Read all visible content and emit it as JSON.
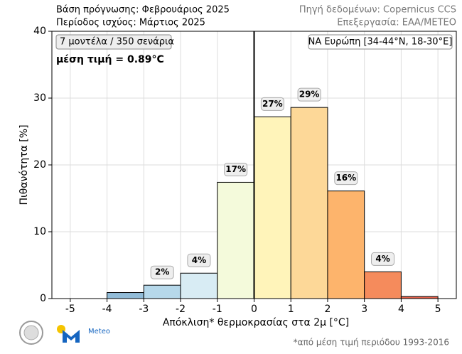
{
  "chart_data": {
    "type": "histogram",
    "header_left": [
      "Βάση πρόγνωσης: Φεβρουάριος 2025",
      "Περίοδος ισχύος: Μάρτιος 2025"
    ],
    "header_right": [
      "Πηγή δεδομένων: Copernicus CCS",
      "Επεξεργασία: ΕΑΑ/METEO"
    ],
    "info_box": "7 μοντέλα / 350 σενάρια",
    "mean_text": "μέση τιμή = 0.89°C",
    "region_box": "ΝΑ Ευρώπη [34-44°N, 18-30°E]",
    "xlabel": "Απόκλιση* θερμοκρασίας στα 2μ [°C]",
    "ylabel": "Πιθανότητα [%]",
    "footnote": "*από μέση τιμή περιόδου 1993-2016",
    "logo_text": "Meteo",
    "bins": [
      -5,
      -4,
      -3,
      -2,
      -1,
      0,
      1,
      2,
      3,
      4,
      5
    ],
    "values": [
      0,
      0.9,
      2.0,
      3.8,
      17.4,
      27.2,
      28.6,
      16.1,
      4.0,
      0.3
    ],
    "value_labels": [
      null,
      null,
      "2%",
      "4%",
      "17%",
      "27%",
      "29%",
      "16%",
      "4%",
      null
    ],
    "colors": [
      "#9ec5de",
      "#92bcd8",
      "#b6d8ea",
      "#d8ecf4",
      "#f4fadb",
      "#fff4ba",
      "#fdd898",
      "#fdb46c",
      "#f58b5c",
      "#e5604a"
    ],
    "xlim": [
      -5.5,
      5.5
    ],
    "xticks": [
      -5,
      -4,
      -3,
      -2,
      -1,
      0,
      1,
      2,
      3,
      4,
      5
    ],
    "ylim": [
      0,
      40
    ],
    "yticks": [
      0,
      10,
      20,
      30,
      40
    ],
    "grid": true
  }
}
